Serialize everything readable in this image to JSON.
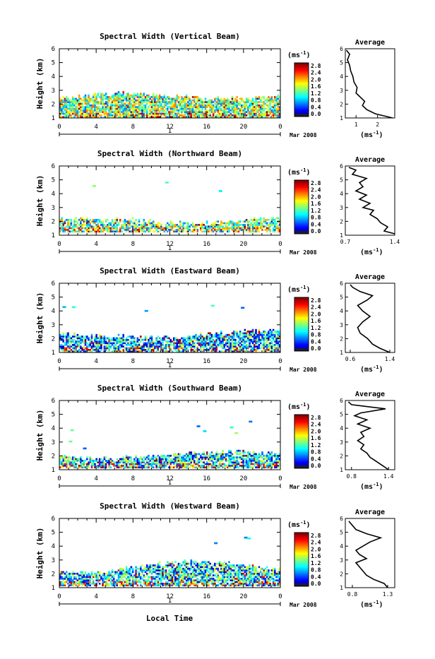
{
  "chart_data": [
    {
      "type": "heatmap",
      "title": "Spectral Width (Vertical Beam)",
      "ylabel": "Height (km)",
      "xticks": [
        "0",
        "4",
        "8",
        "12",
        "16",
        "20",
        "0"
      ],
      "yticks": [
        "1",
        "2",
        "3",
        "4",
        "5",
        "6"
      ],
      "ylim": [
        1,
        6
      ],
      "xlim": [
        0,
        24
      ],
      "date_label": "1",
      "month_label": "Mar 2008",
      "colorbar": {
        "unit": "(ms",
        "unit_exp": "-1",
        "unit_close": ")",
        "ticks": [
          "2.8",
          "2.4",
          "2.0",
          "1.6",
          "1.2",
          "0.8",
          "0.4",
          "0.0"
        ]
      },
      "data_profile": {
        "base": 1.0,
        "top": 2.4,
        "top_var": 0.4,
        "mean": 1.4,
        "sparse": 2
      },
      "average": {
        "title": "Average",
        "xticks": [
          "1",
          "2"
        ],
        "xlim": [
          0.5,
          2.8
        ],
        "xlabel": "(ms",
        "xlabel_exp": "-1",
        "xlabel_close": ")",
        "profile": {
          "height": [
            1.0,
            1.3,
            1.6,
            1.9,
            2.2,
            2.5,
            2.8,
            3.2,
            3.6,
            4.0,
            4.4,
            4.8,
            5.2,
            5.6,
            5.9
          ],
          "value": [
            2.7,
            1.9,
            1.5,
            1.3,
            1.4,
            1.2,
            1.0,
            1.05,
            0.9,
            0.85,
            0.75,
            0.7,
            0.6,
            0.7,
            0.55
          ]
        }
      }
    },
    {
      "type": "heatmap",
      "title": "Spectral Width (Northward Beam)",
      "ylabel": "Height (km)",
      "xticks": [
        "0",
        "4",
        "8",
        "12",
        "16",
        "20",
        "0"
      ],
      "yticks": [
        "1",
        "2",
        "3",
        "4",
        "5",
        "6"
      ],
      "ylim": [
        1,
        6
      ],
      "xlim": [
        0,
        24
      ],
      "date_label": "1",
      "month_label": "Mar 2008",
      "colorbar": {
        "unit": "(ms",
        "unit_exp": "-1",
        "unit_close": ")",
        "ticks": [
          "2.8",
          "2.4",
          "2.0",
          "1.6",
          "1.2",
          "0.8",
          "0.4",
          "0.0"
        ]
      },
      "data_profile": {
        "base": 1.2,
        "top": 1.9,
        "top_var": 0.5,
        "mean": 1.3,
        "sparse": 3
      },
      "average": {
        "title": "Average",
        "xticks": [
          "0.7",
          "1.4"
        ],
        "xlim": [
          0.7,
          1.4
        ],
        "xlabel": "(ms",
        "xlabel_exp": "-1",
        "xlabel_close": ")",
        "profile": {
          "height": [
            1.1,
            1.3,
            1.6,
            1.9,
            2.2,
            2.5,
            2.8,
            3.0,
            3.3,
            3.6,
            3.9,
            4.2,
            4.5,
            4.8,
            5.1,
            5.4,
            5.7,
            5.9
          ],
          "value": [
            1.4,
            1.25,
            1.3,
            1.2,
            1.15,
            1.05,
            1.1,
            0.95,
            1.05,
            0.9,
            1.0,
            0.85,
            0.95,
            0.9,
            1.0,
            0.8,
            0.85,
            0.75
          ]
        }
      }
    },
    {
      "type": "heatmap",
      "title": "Spectral Width (Eastward Beam)",
      "ylabel": "Height (km)",
      "xticks": [
        "0",
        "4",
        "8",
        "12",
        "16",
        "20",
        "0"
      ],
      "yticks": [
        "1",
        "2",
        "3",
        "4",
        "5",
        "6"
      ],
      "ylim": [
        1,
        6
      ],
      "xlim": [
        0,
        24
      ],
      "date_label": "1",
      "month_label": "Mar 2008",
      "colorbar": {
        "unit": "(ms",
        "unit_exp": "-1",
        "unit_close": ")",
        "ticks": [
          "2.8",
          "2.4",
          "2.0",
          "1.6",
          "1.2",
          "0.8",
          "0.4",
          "0.0"
        ]
      },
      "data_profile": {
        "base": 1.0,
        "top": 2.1,
        "top_var": 0.5,
        "mean": 0.9,
        "sparse": 3
      },
      "average": {
        "title": "Average",
        "xticks": [
          "0.6",
          "1.4"
        ],
        "xlim": [
          0.5,
          1.5
        ],
        "xlabel": "(ms",
        "xlabel_exp": "-1",
        "xlabel_close": ")",
        "profile": {
          "height": [
            1.0,
            1.3,
            1.6,
            2.0,
            2.4,
            2.8,
            3.2,
            3.6,
            4.0,
            4.4,
            4.8,
            5.1,
            5.4,
            5.7,
            5.9
          ],
          "value": [
            1.4,
            1.2,
            1.05,
            0.95,
            0.8,
            0.75,
            0.85,
            1.0,
            0.85,
            0.75,
            0.95,
            1.05,
            0.8,
            0.65,
            0.6
          ]
        }
      }
    },
    {
      "type": "heatmap",
      "title": "Spectral Width (Southward Beam)",
      "ylabel": "Height (km)",
      "xticks": [
        "0",
        "4",
        "8",
        "12",
        "16",
        "20",
        "0"
      ],
      "yticks": [
        "1",
        "2",
        "3",
        "4",
        "5",
        "6"
      ],
      "ylim": [
        1,
        6
      ],
      "xlim": [
        0,
        24
      ],
      "date_label": "1",
      "month_label": "Mar 2008",
      "colorbar": {
        "unit": "(ms",
        "unit_exp": "-1",
        "unit_close": ")",
        "ticks": [
          "2.8",
          "2.4",
          "2.0",
          "1.6",
          "1.2",
          "0.8",
          "0.4",
          "0.0"
        ]
      },
      "data_profile": {
        "base": 1.1,
        "top": 1.9,
        "top_var": 0.4,
        "mean": 1.0,
        "sparse": 3
      },
      "average": {
        "title": "Average",
        "xticks": [
          "0.8",
          "1.4"
        ],
        "xlim": [
          0.7,
          1.5
        ],
        "xlabel": "(ms",
        "xlabel_exp": "-1",
        "xlabel_close": ")",
        "profile": {
          "height": [
            1.0,
            1.3,
            1.6,
            1.9,
            2.2,
            2.5,
            2.8,
            3.1,
            3.4,
            3.7,
            4.0,
            4.3,
            4.6,
            4.9,
            5.1,
            5.4,
            5.7,
            5.9
          ],
          "value": [
            1.4,
            1.3,
            1.2,
            1.1,
            1.05,
            0.95,
            1.0,
            0.9,
            1.0,
            0.95,
            1.1,
            0.9,
            1.05,
            0.85,
            0.95,
            1.35,
            0.8,
            0.75
          ]
        }
      }
    },
    {
      "type": "heatmap",
      "title": "Spectral Width (Westward Beam)",
      "ylabel": "Height (km)",
      "xticks": [
        "0",
        "4",
        "8",
        "12",
        "16",
        "20",
        "0"
      ],
      "yticks": [
        "1",
        "2",
        "3",
        "4",
        "5",
        "6"
      ],
      "ylim": [
        1,
        6
      ],
      "xlim": [
        0,
        24
      ],
      "date_label": "1",
      "month_label": "Mar 2008",
      "colorbar": {
        "unit": "(ms",
        "unit_exp": "-1",
        "unit_close": ")",
        "ticks": [
          "2.8",
          "2.4",
          "2.0",
          "1.6",
          "1.2",
          "0.8",
          "0.4",
          "0.0"
        ]
      },
      "data_profile": {
        "base": 1.1,
        "top": 2.3,
        "top_var": 0.6,
        "mean": 1.0,
        "sparse": 3
      },
      "average": {
        "title": "Average",
        "xticks": [
          "0.8",
          "1.3"
        ],
        "xlim": [
          0.7,
          1.4
        ],
        "xlabel": "(ms",
        "xlabel_exp": "-1",
        "xlabel_close": ")",
        "profile": {
          "height": [
            1.0,
            1.3,
            1.6,
            1.9,
            2.2,
            2.5,
            2.8,
            3.1,
            3.4,
            3.7,
            4.0,
            4.3,
            4.6,
            4.9,
            5.2,
            5.5,
            5.8
          ],
          "value": [
            1.3,
            1.25,
            1.1,
            1.0,
            0.95,
            0.9,
            0.85,
            1.0,
            0.9,
            0.85,
            0.95,
            1.05,
            1.2,
            1.0,
            0.85,
            0.8,
            0.75
          ]
        }
      }
    }
  ],
  "footer": {
    "xlabel": "Local Time"
  }
}
